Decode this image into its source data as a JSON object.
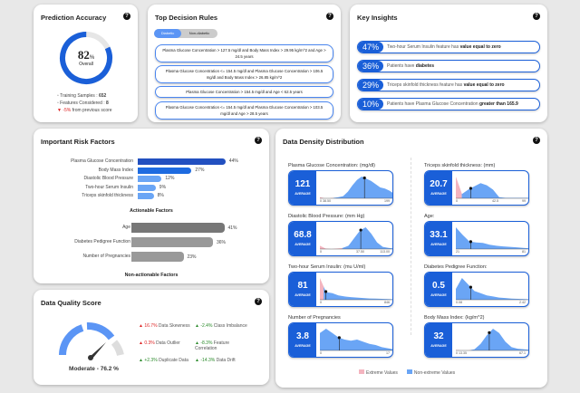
{
  "accuracy": {
    "title": "Prediction Accuracy",
    "value": "82",
    "unit": "%",
    "label": "Overall",
    "percent": 82,
    "stats": [
      {
        "label": "Training Samples : ",
        "value": "652"
      },
      {
        "label": "Features Considered : ",
        "value": "8"
      },
      {
        "label": " from previous score",
        "value": "-5%"
      }
    ]
  },
  "rules": {
    "title": "Top Decision Rules",
    "tabs": [
      "Diabetic",
      "Non-diabetic"
    ],
    "active_tab": "Diabetic",
    "items": [
      "Plasma Glucose Concentration > 127.5 mg/dl and Body Mass Index > 29.95 kg/m^2 and Age > 24.5 years",
      "Plasma Glucose Concentration <= 154.5 mg/dl and Plasma Glucose Concentration > 106.5 mg/dl and Body Mass Index > 26.85 kg/m^2",
      "Plasma Glucose Concentration > 154.5 mg/dl and Age < 62.5 years",
      "Plasma Glucose Concentration <= 154.5 mg/dl and Plasma Glucose Concentration > 103.5 mg/dl and Age > 28.5 years"
    ]
  },
  "insights": {
    "title": "Key Insights",
    "items": [
      {
        "pct": "47%",
        "text": "Two-hour Serum Insulin feature has ",
        "bold": "value equal to zero"
      },
      {
        "pct": "36%",
        "text": "Patients have ",
        "bold": "diabetes"
      },
      {
        "pct": "29%",
        "text": "Triceps skinfold thickness feature has ",
        "bold": "value equal to zero"
      },
      {
        "pct": "10%",
        "text": "Patients have Plasma Glucose Concentration ",
        "bold": "greater than 165.9"
      }
    ]
  },
  "risk": {
    "title": "Important Risk Factors",
    "actionable_label": "Actionable Factors",
    "nonactionable_label": "Non-actionable Factors",
    "actionable": [
      {
        "name": "Plasma Glucose Concentration",
        "value": 44,
        "label": "44%",
        "color": "#2250c0"
      },
      {
        "name": "Body Mass Index",
        "value": 27,
        "label": "27%",
        "color": "#1e6be0"
      },
      {
        "name": "Diastolic Blood Pressure",
        "value": 12,
        "label": "12%",
        "color": "#6aa5f5"
      },
      {
        "name": "Two-hour Serum Insulin",
        "value": 9,
        "label": "9%",
        "color": "#6aa5f5"
      },
      {
        "name": "Triceps skinfold thickness",
        "value": 8,
        "label": "8%",
        "color": "#6aa5f5"
      }
    ],
    "nonactionable": [
      {
        "name": "Age",
        "value": 41,
        "label": "41%",
        "color": "#777"
      },
      {
        "name": "Diabetes Pedigree Function",
        "value": 36,
        "label": "36%",
        "color": "#999"
      },
      {
        "name": "Number of Pregnancies",
        "value": 23,
        "label": "23%",
        "color": "#999"
      }
    ]
  },
  "quality": {
    "title": "Data Quality Score",
    "label": "Moderate - 76.2 %",
    "score": 76.2,
    "items": [
      {
        "dir": "up",
        "cls": "r",
        "value": "16.7%",
        "label": "Data Skewness"
      },
      {
        "dir": "up",
        "cls": "g",
        "value": "-2.4%",
        "label": "Class Imbalance"
      },
      {
        "dir": "up",
        "cls": "r",
        "value": "0.3%",
        "label": "Data Outlier"
      },
      {
        "dir": "up",
        "cls": "g",
        "value": "-8.3%",
        "label": "Feature Correlation"
      },
      {
        "dir": "up",
        "cls": "g",
        "value": "+2.3%",
        "label": "Duplicate Data"
      },
      {
        "dir": "up",
        "cls": "g",
        "value": "-14.3%",
        "label": "Data Drift"
      }
    ]
  },
  "density": {
    "title": "Data Density Distribution",
    "average_label": "AVERAGE",
    "legend": [
      {
        "label": "Extreme Values",
        "color": "#f4b4bf"
      },
      {
        "label": "Non-extreme Values",
        "color": "#6aa5f5"
      }
    ],
    "charts": [
      {
        "name": "Plasma Glucose Concentration: (mg/dl)",
        "avg": "121",
        "ticks": [
          "0 38.50",
          "199"
        ],
        "mean": 0.6,
        "extreme": 0.18,
        "d": [
          0.05,
          0,
          0,
          0.02,
          0.05,
          0.1,
          0.3,
          0.6,
          0.85,
          1,
          0.9,
          0.8,
          0.65,
          0.5,
          0.45,
          0.35,
          0.2
        ]
      },
      {
        "name": "Triceps skinfold thickness: (mm)",
        "avg": "20.7",
        "ticks": [
          "0",
          "42.5",
          "99"
        ],
        "mean": 0.2,
        "extreme": 0.08,
        "d": [
          1,
          0.2,
          0.4,
          0.55,
          0.7,
          0.6,
          0.4,
          0.05,
          0.02,
          0.02,
          0.02,
          0.02,
          0.02
        ]
      },
      {
        "name": "Diastolic Blood Pressure: (mm Hg)",
        "avg": "68.8",
        "ticks": [
          "0",
          "37.50",
          "113.00"
        ],
        "mean": 0.55,
        "extreme": 0.3,
        "d": [
          0.15,
          0.02,
          0,
          0.02,
          0.05,
          0.15,
          0.5,
          0.85,
          1,
          0.7,
          0.3,
          0.1,
          0.05,
          0.02
        ]
      },
      {
        "name": "Age:",
        "avg": "33.1",
        "ticks": [
          "21",
          "81"
        ],
        "mean": 0.2,
        "extreme": 0,
        "d": [
          1,
          0.65,
          0.35,
          0.3,
          0.28,
          0.2,
          0.15,
          0.12,
          0.1,
          0.08,
          0.05,
          0.03
        ]
      },
      {
        "name": "Two-hour Serum Insulin: (mu U/ml)",
        "avg": "81",
        "ticks": [
          "0",
          "846"
        ],
        "mean": 0.08,
        "extreme": 0.05,
        "d": [
          1,
          0.35,
          0.3,
          0.2,
          0.15,
          0.12,
          0.1,
          0.08,
          0.06,
          0.05,
          0.04,
          0.03,
          0.02
        ]
      },
      {
        "name": "Diabetes Pedigree Function:",
        "avg": "0.5",
        "ticks": [
          "0.08",
          "2.42"
        ],
        "mean": 0.2,
        "extreme": 0,
        "d": [
          0.5,
          1,
          0.7,
          0.4,
          0.3,
          0.2,
          0.15,
          0.1,
          0.08,
          0.05,
          0.04,
          0.03,
          0.02
        ]
      },
      {
        "name": "Number of Pregnancies",
        "avg": "3.8",
        "ticks": [
          "0",
          "17"
        ],
        "mean": 0.26,
        "extreme": 0,
        "d": [
          0.8,
          1,
          0.8,
          0.6,
          0.5,
          0.45,
          0.5,
          0.4,
          0.3,
          0.25,
          0.15,
          0.1,
          0.05
        ]
      },
      {
        "name": "Body Mass Index: (kg/m^2)",
        "avg": "32",
        "ticks": [
          "0 13.35",
          "67.1"
        ],
        "mean": 0.45,
        "extreme": 0.2,
        "d": [
          0.02,
          0,
          0,
          0.05,
          0.3,
          0.7,
          1,
          0.8,
          0.4,
          0.15,
          0.08,
          0.05,
          0.03
        ]
      }
    ]
  }
}
